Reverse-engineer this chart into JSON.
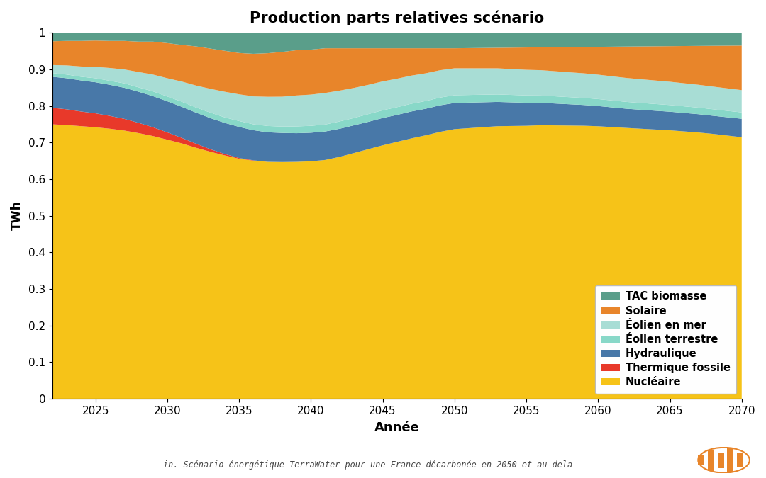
{
  "title": "Production parts relatives scénario",
  "xlabel": "Année",
  "ylabel": "TWh",
  "subtitle": "in. Scénario énergétique TerraWater pour une France décarbonée en 2050 et au dela",
  "years": [
    2022,
    2023,
    2024,
    2025,
    2026,
    2027,
    2028,
    2029,
    2030,
    2031,
    2032,
    2033,
    2034,
    2035,
    2036,
    2037,
    2038,
    2039,
    2040,
    2041,
    2042,
    2043,
    2044,
    2045,
    2046,
    2047,
    2048,
    2049,
    2050,
    2051,
    2052,
    2053,
    2054,
    2055,
    2056,
    2057,
    2058,
    2059,
    2060,
    2061,
    2062,
    2063,
    2064,
    2065,
    2066,
    2067,
    2068,
    2069,
    2070
  ],
  "nucleaire": [
    0.75,
    0.748,
    0.745,
    0.742,
    0.738,
    0.733,
    0.726,
    0.718,
    0.708,
    0.698,
    0.686,
    0.675,
    0.665,
    0.656,
    0.648,
    0.641,
    0.634,
    0.628,
    0.623,
    0.62,
    0.628,
    0.638,
    0.648,
    0.658,
    0.667,
    0.676,
    0.684,
    0.693,
    0.7,
    0.71,
    0.72,
    0.73,
    0.738,
    0.746,
    0.755,
    0.762,
    0.769,
    0.776,
    0.782,
    0.787,
    0.792,
    0.797,
    0.802,
    0.807,
    0.811,
    0.815,
    0.818,
    0.82,
    0.822
  ],
  "thermique_fossile": [
    0.045,
    0.043,
    0.04,
    0.038,
    0.035,
    0.032,
    0.028,
    0.024,
    0.02,
    0.015,
    0.011,
    0.007,
    0.004,
    0.002,
    0.001,
    0.0,
    0.0,
    0.0,
    0.0,
    0.0,
    0.0,
    0.0,
    0.0,
    0.0,
    0.0,
    0.0,
    0.0,
    0.0,
    0.0,
    0.0,
    0.0,
    0.0,
    0.0,
    0.0,
    0.0,
    0.0,
    0.0,
    0.0,
    0.0,
    0.0,
    0.0,
    0.0,
    0.0,
    0.0,
    0.0,
    0.0,
    0.0,
    0.0,
    0.0
  ],
  "hydraulique": [
    0.085,
    0.085,
    0.085,
    0.085,
    0.085,
    0.085,
    0.085,
    0.085,
    0.085,
    0.085,
    0.085,
    0.085,
    0.085,
    0.085,
    0.082,
    0.08,
    0.078,
    0.076,
    0.075,
    0.074,
    0.073,
    0.072,
    0.071,
    0.071,
    0.07,
    0.07,
    0.069,
    0.069,
    0.068,
    0.067,
    0.066,
    0.065,
    0.064,
    0.063,
    0.062,
    0.061,
    0.06,
    0.059,
    0.058,
    0.057,
    0.056,
    0.056,
    0.056,
    0.056,
    0.056,
    0.056,
    0.056,
    0.057,
    0.058
  ],
  "eolien_terrestre": [
    0.01,
    0.01,
    0.01,
    0.011,
    0.011,
    0.012,
    0.012,
    0.013,
    0.013,
    0.014,
    0.014,
    0.015,
    0.015,
    0.016,
    0.016,
    0.017,
    0.017,
    0.018,
    0.018,
    0.018,
    0.019,
    0.019,
    0.02,
    0.02,
    0.02,
    0.02,
    0.02,
    0.02,
    0.02,
    0.02,
    0.02,
    0.02,
    0.02,
    0.02,
    0.02,
    0.02,
    0.02,
    0.02,
    0.02,
    0.02,
    0.02,
    0.02,
    0.02,
    0.02,
    0.02,
    0.02,
    0.02,
    0.02,
    0.02
  ],
  "eolien_en_mer": [
    0.022,
    0.025,
    0.028,
    0.031,
    0.035,
    0.038,
    0.042,
    0.046,
    0.05,
    0.055,
    0.06,
    0.065,
    0.07,
    0.073,
    0.076,
    0.079,
    0.08,
    0.082,
    0.082,
    0.082,
    0.08,
    0.078,
    0.076,
    0.075,
    0.074,
    0.073,
    0.072,
    0.071,
    0.07,
    0.07,
    0.07,
    0.07,
    0.07,
    0.07,
    0.07,
    0.07,
    0.07,
    0.07,
    0.07,
    0.07,
    0.07,
    0.07,
    0.07,
    0.07,
    0.07,
    0.07,
    0.07,
    0.07,
    0.07
  ],
  "solaire": [
    0.065,
    0.067,
    0.07,
    0.072,
    0.074,
    0.078,
    0.083,
    0.09,
    0.096,
    0.1,
    0.107,
    0.11,
    0.112,
    0.113,
    0.116,
    0.118,
    0.12,
    0.12,
    0.118,
    0.116,
    0.11,
    0.103,
    0.095,
    0.086,
    0.079,
    0.071,
    0.065,
    0.057,
    0.052,
    0.053,
    0.054,
    0.055,
    0.058,
    0.061,
    0.063,
    0.067,
    0.071,
    0.075,
    0.08,
    0.086,
    0.092,
    0.097,
    0.102,
    0.107,
    0.113,
    0.119,
    0.126,
    0.133,
    0.14
  ],
  "tac_biomasse": [
    0.023,
    0.022,
    0.022,
    0.021,
    0.022,
    0.022,
    0.024,
    0.024,
    0.028,
    0.033,
    0.037,
    0.043,
    0.049,
    0.055,
    0.057,
    0.055,
    0.051,
    0.046,
    0.044,
    0.04,
    0.04,
    0.04,
    0.04,
    0.04,
    0.04,
    0.04,
    0.04,
    0.04,
    0.04,
    0.04,
    0.04,
    0.04,
    0.04,
    0.04,
    0.04,
    0.04,
    0.04,
    0.04,
    0.04,
    0.04,
    0.04,
    0.04,
    0.04,
    0.04,
    0.04,
    0.04,
    0.04,
    0.04,
    0.04
  ],
  "colors": {
    "nucleaire": "#F6C318",
    "thermique_fossile": "#E8392A",
    "hydraulique": "#4878A8",
    "eolien_terrestre": "#88D8C8",
    "eolien_en_mer": "#A8DDD5",
    "solaire": "#E8852A",
    "tac_biomasse": "#5A9E8A"
  },
  "legend_labels": [
    "TAC biomasse",
    "Solaire",
    "Éolien en mer",
    "Éolien terrestre",
    "Hydraulique",
    "Thermique fossile",
    "Nucléaire"
  ],
  "ylim": [
    0,
    1
  ],
  "xlim": [
    2022,
    2070
  ],
  "background_color": "#FFFFFF",
  "xticks": [
    2025,
    2030,
    2035,
    2040,
    2045,
    2050,
    2055,
    2060,
    2065,
    2070
  ],
  "yticks": [
    0,
    0.1,
    0.2,
    0.3,
    0.4,
    0.5,
    0.6,
    0.7,
    0.8,
    0.9,
    1
  ]
}
